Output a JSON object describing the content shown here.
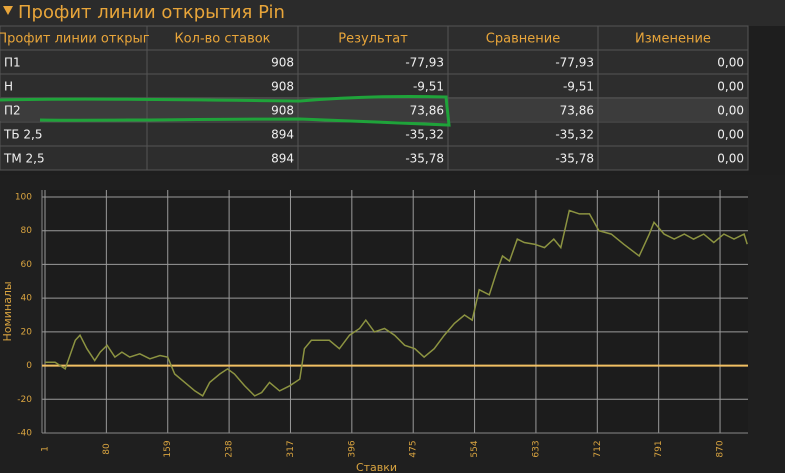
{
  "header": {
    "title": "Профит линии открытия Pin"
  },
  "table": {
    "columns": [
      "Профит линии открыг",
      "Кол-во ставок",
      "Результат",
      "Сравнение",
      "Изменение"
    ],
    "rows": [
      [
        "П1",
        "908",
        "-77,93",
        "-77,93",
        "0,00"
      ],
      [
        "Н",
        "908",
        "-9,51",
        "-9,51",
        "0,00"
      ],
      [
        "П2",
        "908",
        "73,86",
        "73,86",
        "0,00"
      ],
      [
        "ТБ 2,5",
        "894",
        "-35,32",
        "-35,32",
        "0,00"
      ],
      [
        "ТМ 2,5",
        "894",
        "-35,78",
        "-35,78",
        "0,00"
      ]
    ]
  },
  "chart_data": {
    "type": "line",
    "x_label": "Ставки",
    "y_label": "Номиналы",
    "x": [
      1,
      14,
      27,
      40,
      46,
      55,
      65,
      72,
      81,
      91,
      100,
      110,
      123,
      136,
      149,
      159,
      168,
      181,
      194,
      204,
      213,
      226,
      236,
      245,
      258,
      271,
      280,
      290,
      303,
      316,
      329,
      335,
      344,
      354,
      367,
      380,
      393,
      406,
      414,
      425,
      438,
      451,
      464,
      477,
      489,
      502,
      515,
      528,
      541,
      551,
      560,
      573,
      582,
      590,
      599,
      609,
      618,
      631,
      644,
      656,
      665,
      676,
      689,
      702,
      714,
      730,
      746,
      766,
      779,
      785,
      798,
      811,
      824,
      836,
      849,
      862,
      875,
      888,
      901,
      905
    ],
    "series": [
      {
        "color": "#8c9341",
        "values": [
          2,
          2,
          -2,
          15,
          18,
          10,
          3,
          8,
          12,
          5,
          8,
          5,
          7,
          4,
          6,
          5,
          -5,
          -10,
          -15,
          -18,
          -10,
          -5,
          -2,
          -5,
          -12,
          -18,
          -16,
          -10,
          -15,
          -12,
          -8,
          10,
          15,
          15,
          15,
          10,
          18,
          22,
          27,
          20,
          22,
          18,
          12,
          10,
          5,
          10,
          18,
          25,
          30,
          27,
          45,
          42,
          55,
          65,
          62,
          75,
          73,
          72,
          70,
          75,
          70,
          92,
          90,
          90,
          80,
          78,
          72,
          65,
          78,
          85,
          78,
          75,
          78,
          75,
          78,
          73,
          78,
          75,
          78,
          72
        ]
      }
    ],
    "xlim": [
      1,
      906
    ],
    "ylim": [
      -40,
      100
    ],
    "xticks": [
      1,
      80,
      159,
      238,
      317,
      396,
      475,
      554,
      633,
      712,
      791,
      870
    ],
    "yticks": [
      -40,
      -20,
      0,
      20,
      40,
      60,
      80,
      100
    ],
    "grid": true
  }
}
